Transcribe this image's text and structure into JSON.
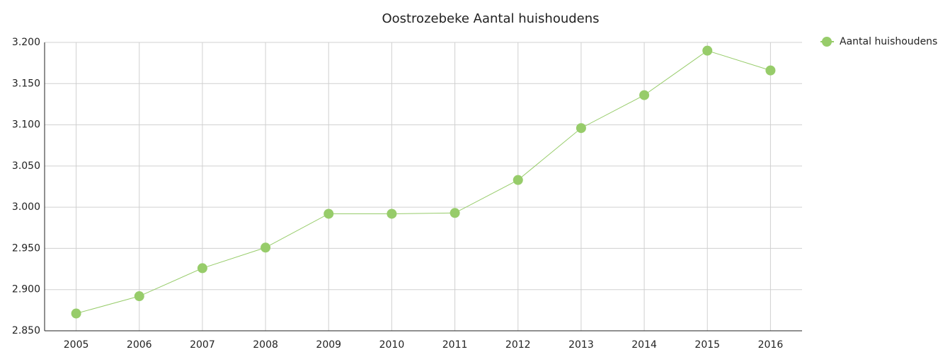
{
  "chart_data": {
    "type": "line",
    "title": "Oostrozebeke  Aantal huishoudens",
    "categories": [
      "2005",
      "2006",
      "2007",
      "2008",
      "2009",
      "2010",
      "2011",
      "2012",
      "2013",
      "2014",
      "2015",
      "2016"
    ],
    "series": [
      {
        "name": "Aantal huishoudens",
        "color": "#97cc6a",
        "values": [
          2871,
          2892,
          2926,
          2951,
          2992,
          2992,
          2993,
          3033,
          3096,
          3136,
          3190,
          3166
        ]
      }
    ],
    "ylim": [
      2850,
      3200
    ],
    "yticks": [
      {
        "value": 2850,
        "label": "2.850"
      },
      {
        "value": 2900,
        "label": "2.900"
      },
      {
        "value": 2950,
        "label": "2.950"
      },
      {
        "value": 3000,
        "label": "3.000"
      },
      {
        "value": 3050,
        "label": "3.050"
      },
      {
        "value": 3100,
        "label": "3.100"
      },
      {
        "value": 3150,
        "label": "3.150"
      },
      {
        "value": 3200,
        "label": "3.200"
      }
    ],
    "grid": true,
    "legend": "top-right"
  }
}
